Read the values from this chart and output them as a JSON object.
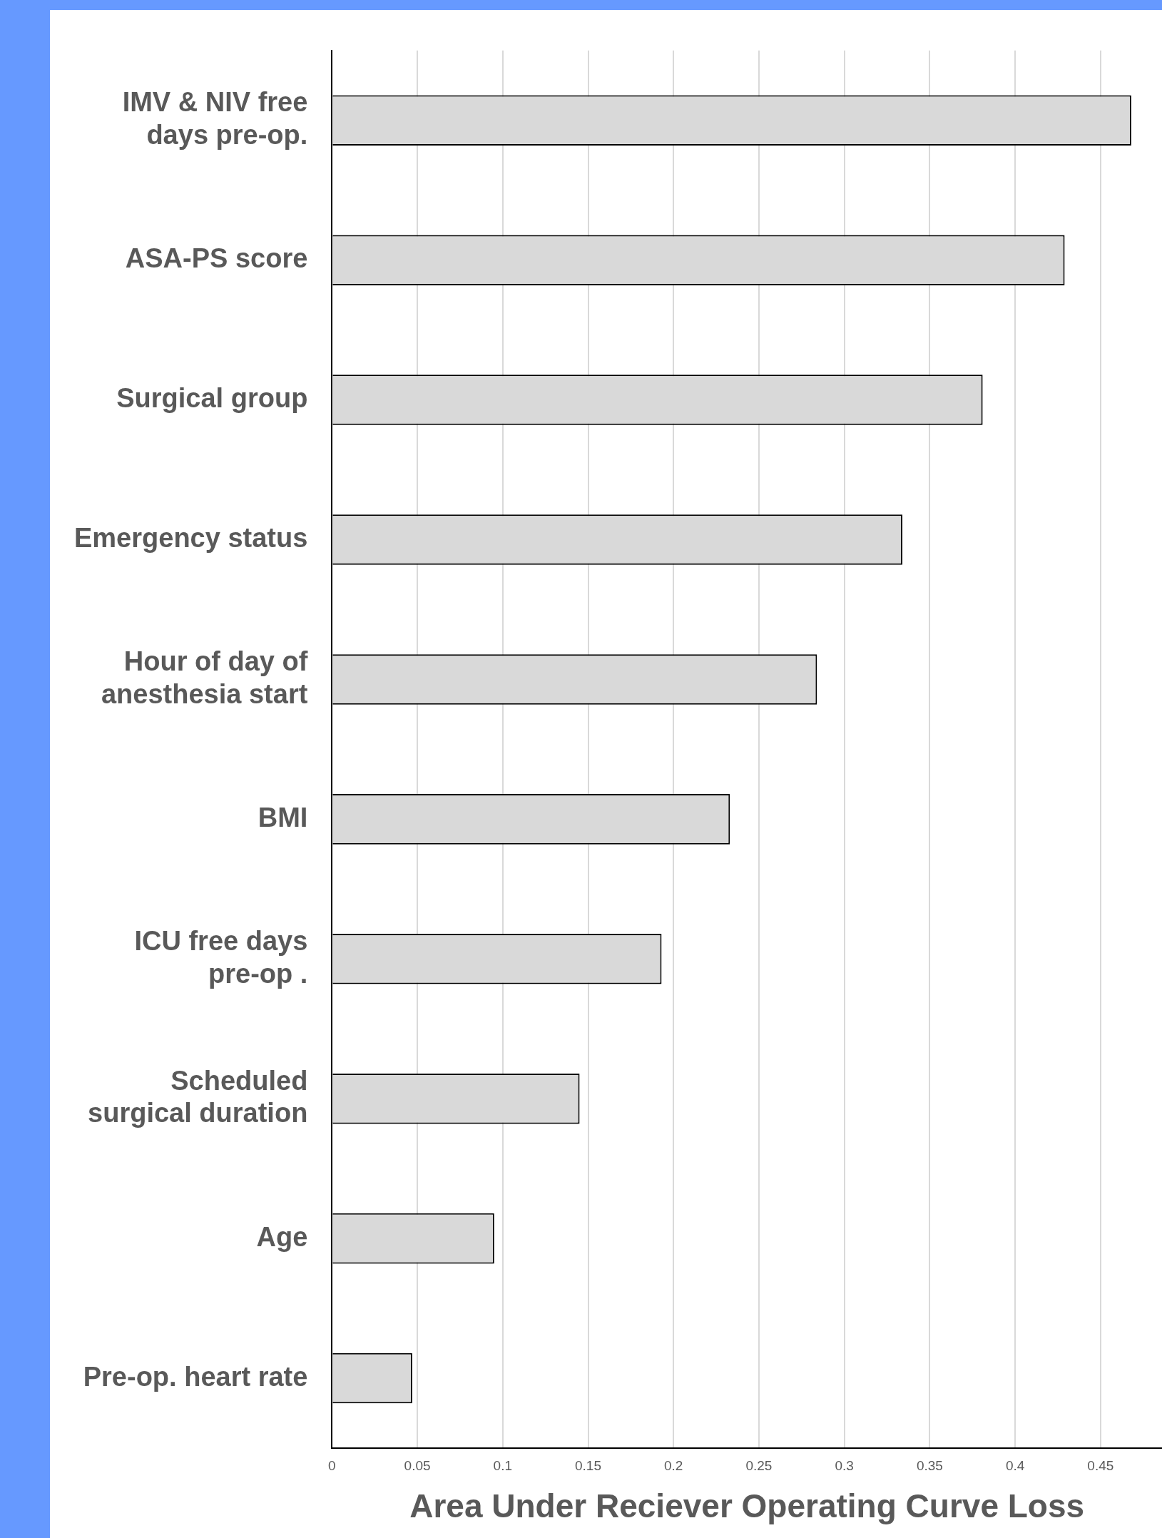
{
  "chart_data": {
    "type": "bar",
    "orientation": "horizontal",
    "xlabel": "Area Under Reciever Operating Curve Loss",
    "categories": [
      "IMV & NIV free days pre-op.",
      "ASA-PS score",
      "Surgical group",
      "Emergency status",
      "Hour of day of anesthesia start",
      "BMI",
      "ICU free days pre-op .",
      "Scheduled surgical duration",
      "Age",
      "Pre-op. heart rate"
    ],
    "values": [
      0.468,
      0.429,
      0.381,
      0.334,
      0.284,
      0.233,
      0.193,
      0.145,
      0.095,
      0.047
    ],
    "color": "#d9d9d9",
    "xlim": [
      0,
      0.486
    ],
    "xticks": [
      0,
      0.05,
      0.1,
      0.15,
      0.2,
      0.25,
      0.3,
      0.35,
      0.4,
      0.45
    ],
    "grid": "x",
    "legend": false
  }
}
